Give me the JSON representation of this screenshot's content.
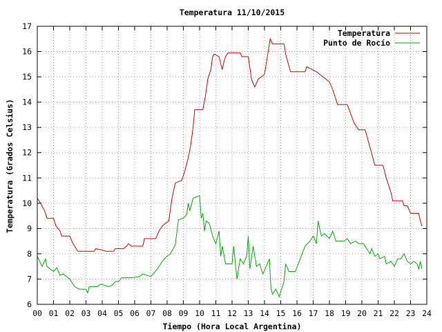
{
  "colors": {
    "temperature": "#cc0000",
    "dewpoint": "#00aa00",
    "grid": "#a0a0a0",
    "frame": "#000000"
  },
  "chart_data": {
    "type": "line",
    "title": "Temperatura 11/10/2015",
    "xlabel": "Tiempo (Hora Local Argentina)",
    "ylabel": "Temperatura (Grados Celsius)",
    "xlim": [
      0,
      24
    ],
    "ylim": [
      6,
      17
    ],
    "grid": true,
    "legend_position": "top-right",
    "x_ticks": [
      "00",
      "01",
      "02",
      "03",
      "04",
      "05",
      "06",
      "07",
      "08",
      "09",
      "10",
      "11",
      "12",
      "13",
      "14",
      "15",
      "16",
      "17",
      "18",
      "19",
      "20",
      "21",
      "22",
      "23",
      "24"
    ],
    "y_ticks": [
      "6",
      "7",
      "8",
      "9",
      "10",
      "11",
      "12",
      "13",
      "14",
      "15",
      "16",
      "17"
    ],
    "series": [
      {
        "name": "Temperatura",
        "points": [
          [
            0.0,
            10.2
          ],
          [
            0.2,
            10.0
          ],
          [
            0.45,
            9.7
          ],
          [
            0.6,
            9.4
          ],
          [
            1.0,
            9.4
          ],
          [
            1.15,
            9.1
          ],
          [
            1.4,
            8.9
          ],
          [
            1.5,
            8.7
          ],
          [
            2.0,
            8.7
          ],
          [
            2.2,
            8.4
          ],
          [
            2.5,
            8.1
          ],
          [
            3.0,
            8.1
          ],
          [
            3.5,
            8.1
          ],
          [
            3.6,
            8.2
          ],
          [
            4.0,
            8.15
          ],
          [
            4.2,
            8.1
          ],
          [
            4.7,
            8.1
          ],
          [
            4.8,
            8.2
          ],
          [
            5.3,
            8.2
          ],
          [
            5.5,
            8.3
          ],
          [
            5.6,
            8.4
          ],
          [
            5.8,
            8.3
          ],
          [
            6.5,
            8.3
          ],
          [
            6.6,
            8.6
          ],
          [
            7.3,
            8.6
          ],
          [
            7.5,
            8.9
          ],
          [
            7.7,
            9.1
          ],
          [
            8.1,
            9.3
          ],
          [
            8.3,
            10.2
          ],
          [
            8.5,
            10.8
          ],
          [
            8.9,
            10.9
          ],
          [
            9.1,
            11.3
          ],
          [
            9.3,
            11.8
          ],
          [
            9.45,
            12.3
          ],
          [
            9.6,
            13.0
          ],
          [
            9.7,
            13.7
          ],
          [
            10.2,
            13.7
          ],
          [
            10.35,
            14.2
          ],
          [
            10.5,
            14.9
          ],
          [
            10.7,
            15.3
          ],
          [
            10.8,
            15.8
          ],
          [
            10.9,
            15.9
          ],
          [
            11.2,
            15.8
          ],
          [
            11.3,
            15.5
          ],
          [
            11.4,
            15.3
          ],
          [
            11.5,
            15.6
          ],
          [
            11.6,
            15.8
          ],
          [
            11.75,
            15.95
          ],
          [
            12.5,
            15.95
          ],
          [
            12.6,
            15.8
          ],
          [
            13.0,
            15.8
          ],
          [
            13.2,
            14.9
          ],
          [
            13.4,
            14.6
          ],
          [
            13.6,
            14.9
          ],
          [
            14.0,
            15.1
          ],
          [
            14.2,
            15.9
          ],
          [
            14.35,
            16.5
          ],
          [
            14.5,
            16.3
          ],
          [
            15.2,
            16.3
          ],
          [
            15.3,
            15.9
          ],
          [
            15.6,
            15.2
          ],
          [
            16.5,
            15.2
          ],
          [
            16.6,
            15.4
          ],
          [
            16.9,
            15.3
          ],
          [
            17.2,
            15.2
          ],
          [
            17.6,
            15.0
          ],
          [
            18.0,
            14.8
          ],
          [
            18.2,
            14.5
          ],
          [
            18.5,
            13.9
          ],
          [
            19.1,
            13.9
          ],
          [
            19.5,
            13.2
          ],
          [
            19.8,
            12.9
          ],
          [
            20.2,
            12.9
          ],
          [
            20.5,
            12.2
          ],
          [
            20.8,
            11.5
          ],
          [
            21.3,
            11.5
          ],
          [
            21.5,
            11.0
          ],
          [
            21.8,
            10.4
          ],
          [
            21.9,
            10.1
          ],
          [
            22.5,
            10.1
          ],
          [
            22.6,
            9.9
          ],
          [
            22.8,
            9.9
          ],
          [
            23.0,
            9.6
          ],
          [
            23.5,
            9.6
          ],
          [
            23.6,
            9.3
          ],
          [
            23.7,
            9.1
          ]
        ]
      },
      {
        "name": "Punto de Rocío",
        "points": [
          [
            0.0,
            7.9
          ],
          [
            0.3,
            7.5
          ],
          [
            0.5,
            7.8
          ],
          [
            0.6,
            7.5
          ],
          [
            1.0,
            7.3
          ],
          [
            1.2,
            7.45
          ],
          [
            1.4,
            7.15
          ],
          [
            1.6,
            7.2
          ],
          [
            2.0,
            7.0
          ],
          [
            2.3,
            6.7
          ],
          [
            2.6,
            6.6
          ],
          [
            3.0,
            6.6
          ],
          [
            3.1,
            6.45
          ],
          [
            3.2,
            6.7
          ],
          [
            3.7,
            6.7
          ],
          [
            3.9,
            6.8
          ],
          [
            4.4,
            6.7
          ],
          [
            4.6,
            6.75
          ],
          [
            4.8,
            6.9
          ],
          [
            5.0,
            6.9
          ],
          [
            5.2,
            7.05
          ],
          [
            5.8,
            7.05
          ],
          [
            6.3,
            7.1
          ],
          [
            6.5,
            7.2
          ],
          [
            7.0,
            7.1
          ],
          [
            7.4,
            7.4
          ],
          [
            7.7,
            7.7
          ],
          [
            7.9,
            7.85
          ],
          [
            8.2,
            8.0
          ],
          [
            8.5,
            8.35
          ],
          [
            8.7,
            9.35
          ],
          [
            9.0,
            9.4
          ],
          [
            9.2,
            9.55
          ],
          [
            9.3,
            10.0
          ],
          [
            9.4,
            9.7
          ],
          [
            9.6,
            10.2
          ],
          [
            10.0,
            10.3
          ],
          [
            10.1,
            9.4
          ],
          [
            10.2,
            9.6
          ],
          [
            10.3,
            8.9
          ],
          [
            10.4,
            9.3
          ],
          [
            10.6,
            9.2
          ],
          [
            10.8,
            8.7
          ],
          [
            11.0,
            8.4
          ],
          [
            11.2,
            8.9
          ],
          [
            11.3,
            7.9
          ],
          [
            11.4,
            8.3
          ],
          [
            11.6,
            7.6
          ],
          [
            12.0,
            7.6
          ],
          [
            12.1,
            8.3
          ],
          [
            12.3,
            7.0
          ],
          [
            12.5,
            7.8
          ],
          [
            12.7,
            7.6
          ],
          [
            12.9,
            7.9
          ],
          [
            13.0,
            8.7
          ],
          [
            13.1,
            7.4
          ],
          [
            13.3,
            8.3
          ],
          [
            13.5,
            7.5
          ],
          [
            13.7,
            7.6
          ],
          [
            13.9,
            7.2
          ],
          [
            14.1,
            7.5
          ],
          [
            14.3,
            7.8
          ],
          [
            14.4,
            6.6
          ],
          [
            14.5,
            6.4
          ],
          [
            14.7,
            6.6
          ],
          [
            14.9,
            6.3
          ],
          [
            15.2,
            6.9
          ],
          [
            15.3,
            7.6
          ],
          [
            15.5,
            7.3
          ],
          [
            15.7,
            7.3
          ],
          [
            15.9,
            7.3
          ],
          [
            16.2,
            7.8
          ],
          [
            16.5,
            8.3
          ],
          [
            16.8,
            8.5
          ],
          [
            17.0,
            8.7
          ],
          [
            17.2,
            8.4
          ],
          [
            17.3,
            9.3
          ],
          [
            17.5,
            8.7
          ],
          [
            17.7,
            8.8
          ],
          [
            18.0,
            8.6
          ],
          [
            18.2,
            8.9
          ],
          [
            18.4,
            8.5
          ],
          [
            18.6,
            8.5
          ],
          [
            18.9,
            8.5
          ],
          [
            19.1,
            8.6
          ],
          [
            19.3,
            8.4
          ],
          [
            19.6,
            8.5
          ],
          [
            19.8,
            8.4
          ],
          [
            20.1,
            8.4
          ],
          [
            20.3,
            8.2
          ],
          [
            20.5,
            8.0
          ],
          [
            20.6,
            8.2
          ],
          [
            20.8,
            7.9
          ],
          [
            21.0,
            8.0
          ],
          [
            21.1,
            7.8
          ],
          [
            21.4,
            7.9
          ],
          [
            21.5,
            7.6
          ],
          [
            21.8,
            7.7
          ],
          [
            22.0,
            7.5
          ],
          [
            22.2,
            7.8
          ],
          [
            22.4,
            7.8
          ],
          [
            22.6,
            8.0
          ],
          [
            22.8,
            7.7
          ],
          [
            23.0,
            7.6
          ],
          [
            23.2,
            7.7
          ],
          [
            23.4,
            7.6
          ],
          [
            23.5,
            7.4
          ],
          [
            23.6,
            7.7
          ],
          [
            23.7,
            7.4
          ]
        ]
      }
    ]
  }
}
